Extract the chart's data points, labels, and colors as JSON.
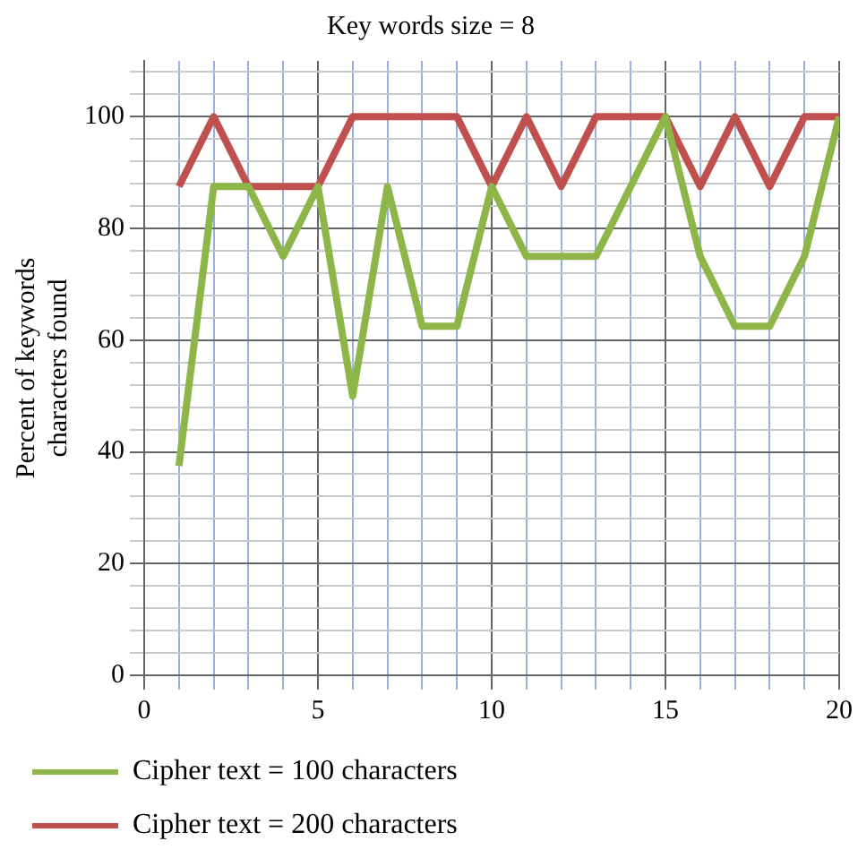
{
  "chart_data": {
    "type": "line",
    "title": "Key words size = 8",
    "ylabel": "Percent of keywords characters found",
    "x": [
      1,
      2,
      3,
      4,
      5,
      6,
      7,
      8,
      9,
      10,
      11,
      12,
      13,
      14,
      15,
      16,
      17,
      18,
      19,
      20
    ],
    "series": [
      {
        "name": "Cipher text = 100 characters",
        "color": "#8db548",
        "values": [
          37.5,
          87.5,
          87.5,
          75,
          87.5,
          50,
          87.5,
          62.5,
          62.5,
          87.5,
          75,
          75,
          75,
          87.5,
          100,
          75,
          62.5,
          62.5,
          75,
          100
        ]
      },
      {
        "name": "Cipher text = 200 characters",
        "color": "#c0504d",
        "values": [
          87.5,
          100,
          87.5,
          87.5,
          87.5,
          100,
          100,
          100,
          100,
          87.5,
          100,
          87.5,
          100,
          100,
          100,
          87.5,
          100,
          87.5,
          100,
          100
        ]
      }
    ],
    "xlim": [
      0,
      20
    ],
    "xticks": [
      0,
      {
        "value": 1,
        "label": null
      },
      {
        "value": 2,
        "label": null
      },
      {
        "value": 3,
        "label": null
      },
      {
        "value": 4,
        "label": null
      },
      5,
      {
        "value": 6,
        "label": null
      },
      {
        "value": 7,
        "label": null
      },
      {
        "value": 8,
        "label": null
      },
      {
        "value": 9,
        "label": null
      },
      10,
      {
        "value": 11,
        "label": null
      },
      {
        "value": 12,
        "label": null
      },
      {
        "value": 13,
        "label": null
      },
      {
        "value": 14,
        "label": null
      },
      15,
      {
        "value": 16,
        "label": null
      },
      {
        "value": 17,
        "label": null
      },
      {
        "value": 18,
        "label": null
      },
      {
        "value": 19,
        "label": null
      },
      20
    ],
    "ylim": [
      0,
      110
    ],
    "yticks": [
      0,
      {
        "value": 4,
        "label": null
      },
      {
        "value": 8,
        "label": null
      },
      {
        "value": 12,
        "label": null
      },
      {
        "value": 16,
        "label": null
      },
      20,
      {
        "value": 24,
        "label": null
      },
      {
        "value": 28,
        "label": null
      },
      {
        "value": 32,
        "label": null
      },
      {
        "value": 36,
        "label": null
      },
      40,
      {
        "value": 44,
        "label": null
      },
      {
        "value": 48,
        "label": null
      },
      {
        "value": 52,
        "label": null
      },
      {
        "value": 56,
        "label": null
      },
      60,
      {
        "value": 64,
        "label": null
      },
      {
        "value": 68,
        "label": null
      },
      {
        "value": 72,
        "label": null
      },
      {
        "value": 76,
        "label": null
      },
      80,
      {
        "value": 84,
        "label": null
      },
      {
        "value": 88,
        "label": null
      },
      {
        "value": 92,
        "label": null
      },
      {
        "value": 96,
        "label": null
      },
      100,
      {
        "value": 104,
        "label": null
      },
      {
        "value": 108,
        "label": null
      }
    ],
    "grid": true,
    "legend": "bottom",
    "marker": "none",
    "line_style": "solid"
  }
}
